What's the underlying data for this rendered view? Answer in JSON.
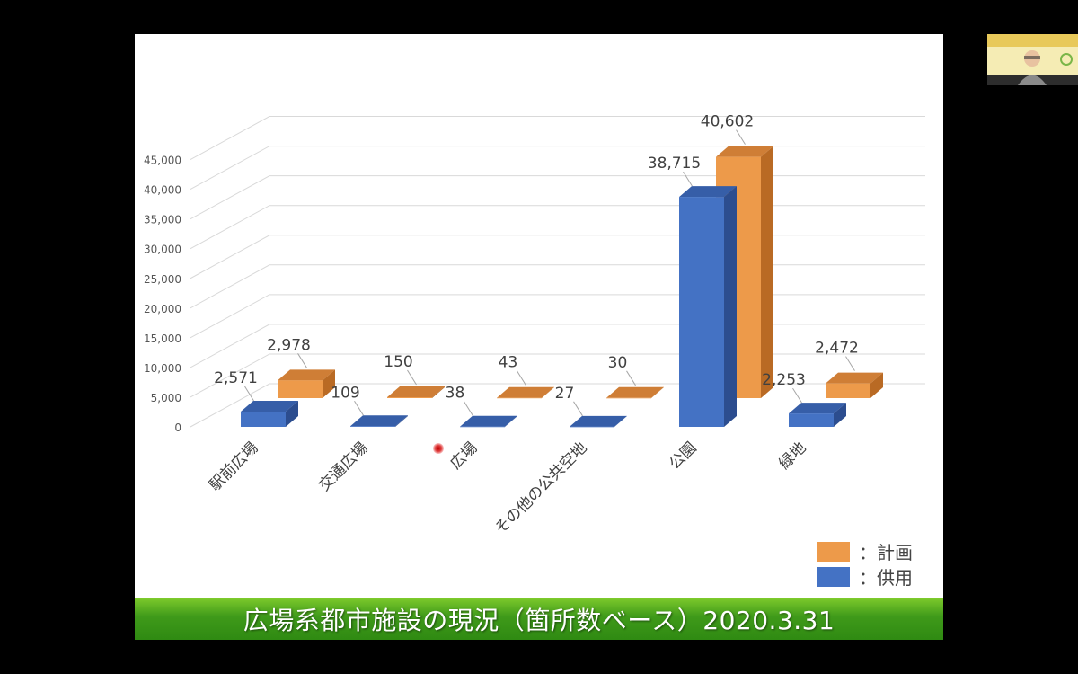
{
  "slide": {
    "title": "広場系都市施設の現況（箇所数ベース）2020.3.31"
  },
  "legend": {
    "planned_label": "：計画",
    "in_use_label": "：供用"
  },
  "colors": {
    "planned": "#ed9a4a",
    "planned_side": "#b96a24",
    "planned_top": "#cf7e36",
    "in_use": "#4472c4",
    "in_use_side": "#2c4d8f",
    "in_use_top": "#365ea8",
    "grid": "#d9d9d9",
    "title_bar": "#3f9a1a"
  },
  "chart_data": {
    "type": "bar",
    "categories": [
      "駅前広場",
      "交通広場",
      "広場",
      "その他の公共空地",
      "公園",
      "緑地"
    ],
    "series": [
      {
        "name": "供用",
        "values": [
          2571,
          109,
          38,
          27,
          38715,
          2253
        ],
        "labels": [
          "2,571",
          "109",
          "38",
          "27",
          "38,715",
          "2,253"
        ]
      },
      {
        "name": "計画",
        "values": [
          2978,
          150,
          43,
          30,
          40602,
          2472
        ],
        "labels": [
          "2,978",
          "150",
          "43",
          "30",
          "40,602",
          "2,472"
        ]
      }
    ],
    "y_ticks": [
      "0",
      "5,000",
      "10,000",
      "15,000",
      "20,000",
      "25,000",
      "30,000",
      "35,000",
      "40,000",
      "45,000"
    ],
    "ylim": [
      0,
      45000
    ],
    "grid": true,
    "legend_position": "bottom-right",
    "style": "3d-clustered-column"
  },
  "webcam": {
    "icon": "presenter-video-thumbnail"
  }
}
